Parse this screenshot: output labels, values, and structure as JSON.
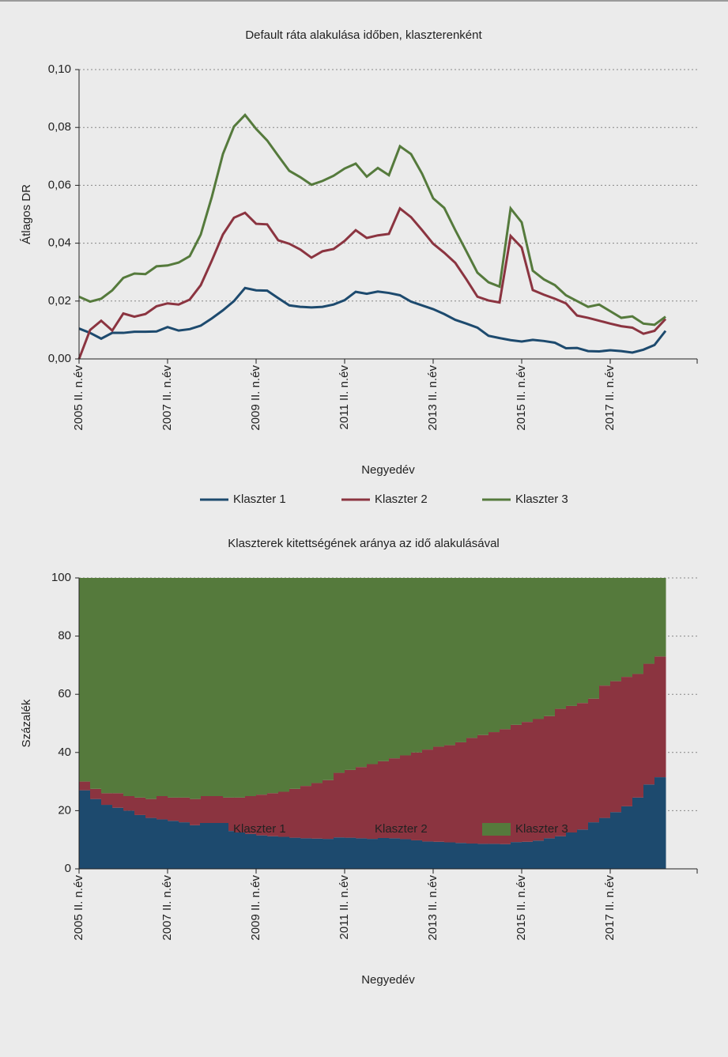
{
  "chart_data": [
    {
      "type": "line",
      "title": "Default ráta alakulása időben, klaszterenként",
      "x_label": "Negyedév",
      "y_label": "Átlagos DR",
      "categories": [
        "2005 II. n.év",
        null,
        null,
        null,
        null,
        null,
        null,
        null,
        "2007 II. n.év",
        null,
        null,
        null,
        null,
        null,
        null,
        null,
        "2009 II. n.év",
        null,
        null,
        null,
        null,
        null,
        null,
        null,
        "2011 II. n.év",
        null,
        null,
        null,
        null,
        null,
        null,
        null,
        "2013 II. n.év",
        null,
        null,
        null,
        null,
        null,
        null,
        null,
        "2015 II. n.év",
        null,
        null,
        null,
        null,
        null,
        null,
        null,
        "2017 II. n.év",
        null,
        null,
        null,
        null,
        null
      ],
      "ylim": [
        0,
        0.1
      ],
      "yticks": [
        {
          "value": 0,
          "label": "0,00"
        },
        {
          "value": 0.02,
          "label": "0,02"
        },
        {
          "value": 0.04,
          "label": "0,04"
        },
        {
          "value": 0.06,
          "label": "0,06"
        },
        {
          "value": 0.08,
          "label": "0,08"
        },
        {
          "value": 0.1,
          "label": "0,10"
        }
      ],
      "grid": true,
      "series": [
        {
          "name": "Klaszter 1",
          "color": "#1d4a6e",
          "values": [
            0.0105,
            0.009,
            0.007,
            0.009,
            0.009,
            0.0094,
            0.0094,
            0.0095,
            0.011,
            0.0098,
            0.0103,
            0.0115,
            0.014,
            0.0168,
            0.02,
            0.0245,
            0.0237,
            0.0236,
            0.021,
            0.0185,
            0.018,
            0.0178,
            0.018,
            0.0188,
            0.0203,
            0.0232,
            0.0225,
            0.0233,
            0.0228,
            0.022,
            0.0198,
            0.0185,
            0.0172,
            0.0155,
            0.0135,
            0.0122,
            0.0108,
            0.008,
            0.0072,
            0.0065,
            0.006,
            0.0066,
            0.0062,
            0.0056,
            0.0037,
            0.0038,
            0.0027,
            0.0026,
            0.003,
            0.0027,
            0.0022,
            0.0032,
            0.0048,
            0.0097
          ]
        },
        {
          "name": "Klaszter 2",
          "color": "#8b3440",
          "values": [
            0,
            0.01,
            0.0132,
            0.0098,
            0.0157,
            0.0146,
            0.0155,
            0.0182,
            0.0192,
            0.0188,
            0.0205,
            0.0255,
            0.034,
            0.043,
            0.0488,
            0.0505,
            0.0467,
            0.0465,
            0.041,
            0.0398,
            0.0378,
            0.035,
            0.0372,
            0.038,
            0.0408,
            0.0445,
            0.0418,
            0.0427,
            0.0432,
            0.052,
            0.049,
            0.0445,
            0.0398,
            0.0367,
            0.0332,
            0.0275,
            0.0215,
            0.0202,
            0.0195,
            0.0425,
            0.0385,
            0.0238,
            0.0222,
            0.0208,
            0.0192,
            0.015,
            0.0142,
            0.0132,
            0.0122,
            0.0113,
            0.0108,
            0.0087,
            0.0097,
            0.0138
          ]
        },
        {
          "name": "Klaszter 3",
          "color": "#557a3c",
          "values": [
            0.0215,
            0.0198,
            0.0208,
            0.0237,
            0.028,
            0.0295,
            0.0293,
            0.032,
            0.0323,
            0.0333,
            0.0355,
            0.043,
            0.056,
            0.0708,
            0.0803,
            0.0843,
            0.0795,
            0.0755,
            0.0702,
            0.065,
            0.0628,
            0.0602,
            0.0615,
            0.0633,
            0.0658,
            0.0675,
            0.063,
            0.066,
            0.0635,
            0.0735,
            0.0708,
            0.064,
            0.0555,
            0.0522,
            0.0445,
            0.0372,
            0.0298,
            0.0265,
            0.025,
            0.052,
            0.0472,
            0.0305,
            0.0275,
            0.0255,
            0.022,
            0.02,
            0.018,
            0.0188,
            0.0165,
            0.0142,
            0.0147,
            0.0122,
            0.0118,
            0.0146
          ]
        }
      ]
    },
    {
      "type": "area",
      "title": "Klaszterek kitettségének aránya az idő alakulásával",
      "x_label": "Negyedév",
      "y_label": "Százalék",
      "categories": [
        "2005 II. n.év",
        null,
        null,
        null,
        null,
        null,
        null,
        null,
        "2007 II. n.év",
        null,
        null,
        null,
        null,
        null,
        null,
        null,
        "2009 II. n.év",
        null,
        null,
        null,
        null,
        null,
        null,
        null,
        "2011 II. n.év",
        null,
        null,
        null,
        null,
        null,
        null,
        null,
        "2013 II. n.év",
        null,
        null,
        null,
        null,
        null,
        null,
        null,
        "2015 II. n.év",
        null,
        null,
        null,
        null,
        null,
        null,
        null,
        "2017 II. n.év",
        null,
        null,
        null,
        null
      ],
      "ylim": [
        0,
        100
      ],
      "yticks": [
        0,
        20,
        40,
        60,
        80,
        100
      ],
      "grid": true,
      "series": [
        {
          "name": "Klaszter 1",
          "color": "#1d4a6e",
          "values": [
            27,
            24,
            22,
            21,
            20,
            18.5,
            17.5,
            17,
            16.5,
            16,
            15,
            14.5,
            14,
            13,
            12.5,
            12,
            11.5,
            11.2,
            11,
            10.7,
            10.5,
            10.4,
            10.3,
            10.8,
            10.7,
            10.5,
            10.3,
            10.6,
            10.5,
            10.2,
            9.8,
            9.4,
            9.3,
            9.1,
            8.9,
            8.7,
            8.6,
            8.6,
            8.5,
            9.2,
            9.3,
            9.7,
            10.5,
            11.2,
            12.5,
            13.5,
            16,
            17.5,
            19.5,
            21.5,
            24.5,
            29,
            31.5
          ]
        },
        {
          "name": "Klaszter 2",
          "color": "#8b3440",
          "values": [
            3,
            3.5,
            4,
            5,
            5,
            6,
            6.5,
            8,
            8,
            8.5,
            9,
            10.5,
            11,
            11.5,
            12,
            13,
            14,
            14.8,
            15.5,
            16.8,
            18,
            19.1,
            20.2,
            22.2,
            23.3,
            24.5,
            25.7,
            26.4,
            27.5,
            28.8,
            30.2,
            31.6,
            32.7,
            33.4,
            34.6,
            36.3,
            37.4,
            38.4,
            39.5,
            40.3,
            41.2,
            41.8,
            42,
            43.8,
            43.5,
            43.5,
            42.5,
            45.5,
            45,
            44.5,
            42.5,
            41.5,
            41.5
          ]
        },
        {
          "name": "Klaszter 3",
          "color": "#557a3c",
          "values": [
            70,
            72.5,
            74,
            74,
            75,
            75.5,
            76,
            75,
            75.5,
            75.5,
            76,
            75,
            75,
            75.5,
            75.5,
            75,
            74.5,
            74,
            73.5,
            72.5,
            71.5,
            70.5,
            69.5,
            67,
            66,
            65,
            64,
            63,
            62,
            61,
            60,
            59,
            58,
            57.5,
            56.5,
            55,
            54,
            53,
            52,
            50.5,
            49.5,
            48.5,
            47.5,
            45,
            44,
            43,
            41.5,
            37,
            35.5,
            34,
            33,
            29.5,
            27
          ]
        }
      ]
    }
  ]
}
